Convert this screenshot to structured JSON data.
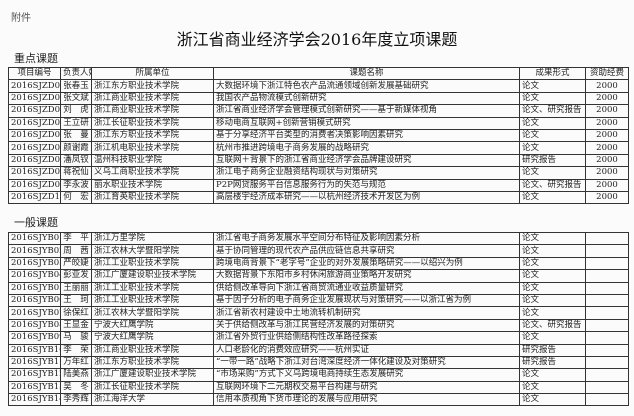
{
  "annex": "附件",
  "title": "浙江省商业经济学会2016年度立项课题",
  "headers": [
    "项目编号",
    "负责人姓名",
    "所属单位",
    "课题名称",
    "成果形式",
    "资助经费"
  ],
  "key_section": {
    "label": "重点课题",
    "rows": [
      [
        "2016SJZD01",
        "张春玉",
        "浙江东方职业技术学院",
        "大数据环境下浙江特色农产品流通领域创新发展基础研究",
        "论文",
        "2000"
      ],
      [
        "2016SJZD02",
        "张文斌",
        "浙江商业职业技术学院",
        "我国农产品物流模式创新研究",
        "论文",
        "2000"
      ],
      [
        "2016SJZD03",
        "刘　虎",
        "浙江商业职业技术学院",
        "浙江省商业经济学会管理模式创新研究——基于新媒体视角",
        "论文、研究报告",
        "2000"
      ],
      [
        "2016SJZD04",
        "王立研",
        "浙江长征职业技术学院",
        "移动电商互联网+创新营销模式研究",
        "论文",
        "2000"
      ],
      [
        "2016SJZD05",
        "张　曼",
        "浙江东方职业技术学院",
        "基于分享经济平台类型的消费者决策影响因素研究",
        "论文",
        "2000"
      ],
      [
        "2016SJZD06",
        "颜谢霞",
        "浙江机电职业技术学院",
        "杭州市推进跨境电子商务发展的战略研究",
        "论文",
        "2000"
      ],
      [
        "2016SJZD07",
        "潘凤钗",
        "温州科技职业学院",
        "互联网＋背景下的浙江省商业经济学会品牌建设研究",
        "研究报告",
        "2000"
      ],
      [
        "2016SJZD08",
        "蒋祝仙",
        "义乌工商职业技术学院",
        "浙江电子商务企业融资结构现状与对策研究",
        "论文",
        "2000"
      ],
      [
        "2016SJZD09",
        "李永波",
        "丽水职业技术学院",
        "P2P网贷服务平台信息服务行为的失范与规范",
        "论文、研究报告",
        "2000"
      ],
      [
        "2016SJZD10",
        "何　宏",
        "浙江育英职业技术学院",
        "高层楼宇经济成本研究——以杭州经济技术开发区为例",
        "论文",
        "2000"
      ]
    ]
  },
  "general_section": {
    "label": "一般课题",
    "rows": [
      [
        "2016SJYB01",
        "李　平",
        "浙江万里学院",
        "浙江省电子商务发展水平空间分布特征及影响因素分析",
        "论文",
        ""
      ],
      [
        "2016SJYB02",
        "周　茜",
        "浙江农林大学暨阳学院",
        "基于协同管理的现代农产品供应链信息共享研究",
        "论文",
        ""
      ],
      [
        "2016SJYB03",
        "严皎婕",
        "浙江工业职业技术学院",
        "跨境电商背景下“老字号”企业的对外发展策略研究——以绍兴为例",
        "论文",
        ""
      ],
      [
        "2016SJYB04",
        "彭亚发",
        "浙江广厦建设职业技术学院",
        "大数据背景下东阳市乡村休闲旅游商业策略开发研究",
        "论文",
        ""
      ],
      [
        "2016SJYB05",
        "王丽丽",
        "浙江工业职业技术学院",
        "供给侧改革导向下浙江省商贸流通业收益质量研究",
        "论文",
        ""
      ],
      [
        "2016SJYB06",
        "王　珂",
        "浙江工业职业技术学院",
        "基于因子分析的电子商务企业发展现状与对策研究——以浙江省为例",
        "论文",
        ""
      ],
      [
        "2016SJYB07",
        "徐保红",
        "浙江农林大学暨阳学院",
        "浙江省新农村建设中土地流转机制研究",
        "论文",
        ""
      ],
      [
        "2016SJYB08",
        "王显金",
        "宁波大红鹰学院",
        "关于供给侧改革与浙江民营经济发展的对策研究",
        "论文、研究报告",
        ""
      ],
      [
        "2016SJYB09",
        "马　骏",
        "宁波大红鹰学院",
        "浙江省外贸行业供给侧结构性改革路径探索",
        "论文",
        ""
      ],
      [
        "2016SJYB10",
        "李　荣",
        "浙江商业职业技术学院",
        "人口老龄化的消费效应研究——杭州实证",
        "研究报告",
        ""
      ],
      [
        "2016SJYB11",
        "万年红",
        "浙江东方职业技术学院",
        "“一带一路”战略下浙江对台湾深度经济一体化建设及对策研究",
        "研究报告",
        ""
      ],
      [
        "2016SJYB12",
        "陆美燕",
        "浙江广厦建设职业技术学院",
        "“市场采购”方式下义乌跨境电商持续生态发展研究",
        "论文",
        ""
      ],
      [
        "2016SJYB13",
        "吴　冬",
        "浙江长征职业技术学院",
        "互联网环境下二元期权交易平台构建与研究",
        "论文",
        ""
      ],
      [
        "2016SJYB14",
        "李秀辉",
        "浙江海洋大学",
        "信用本质视角下货币理论的发展与应用研究",
        "论文",
        ""
      ]
    ]
  }
}
